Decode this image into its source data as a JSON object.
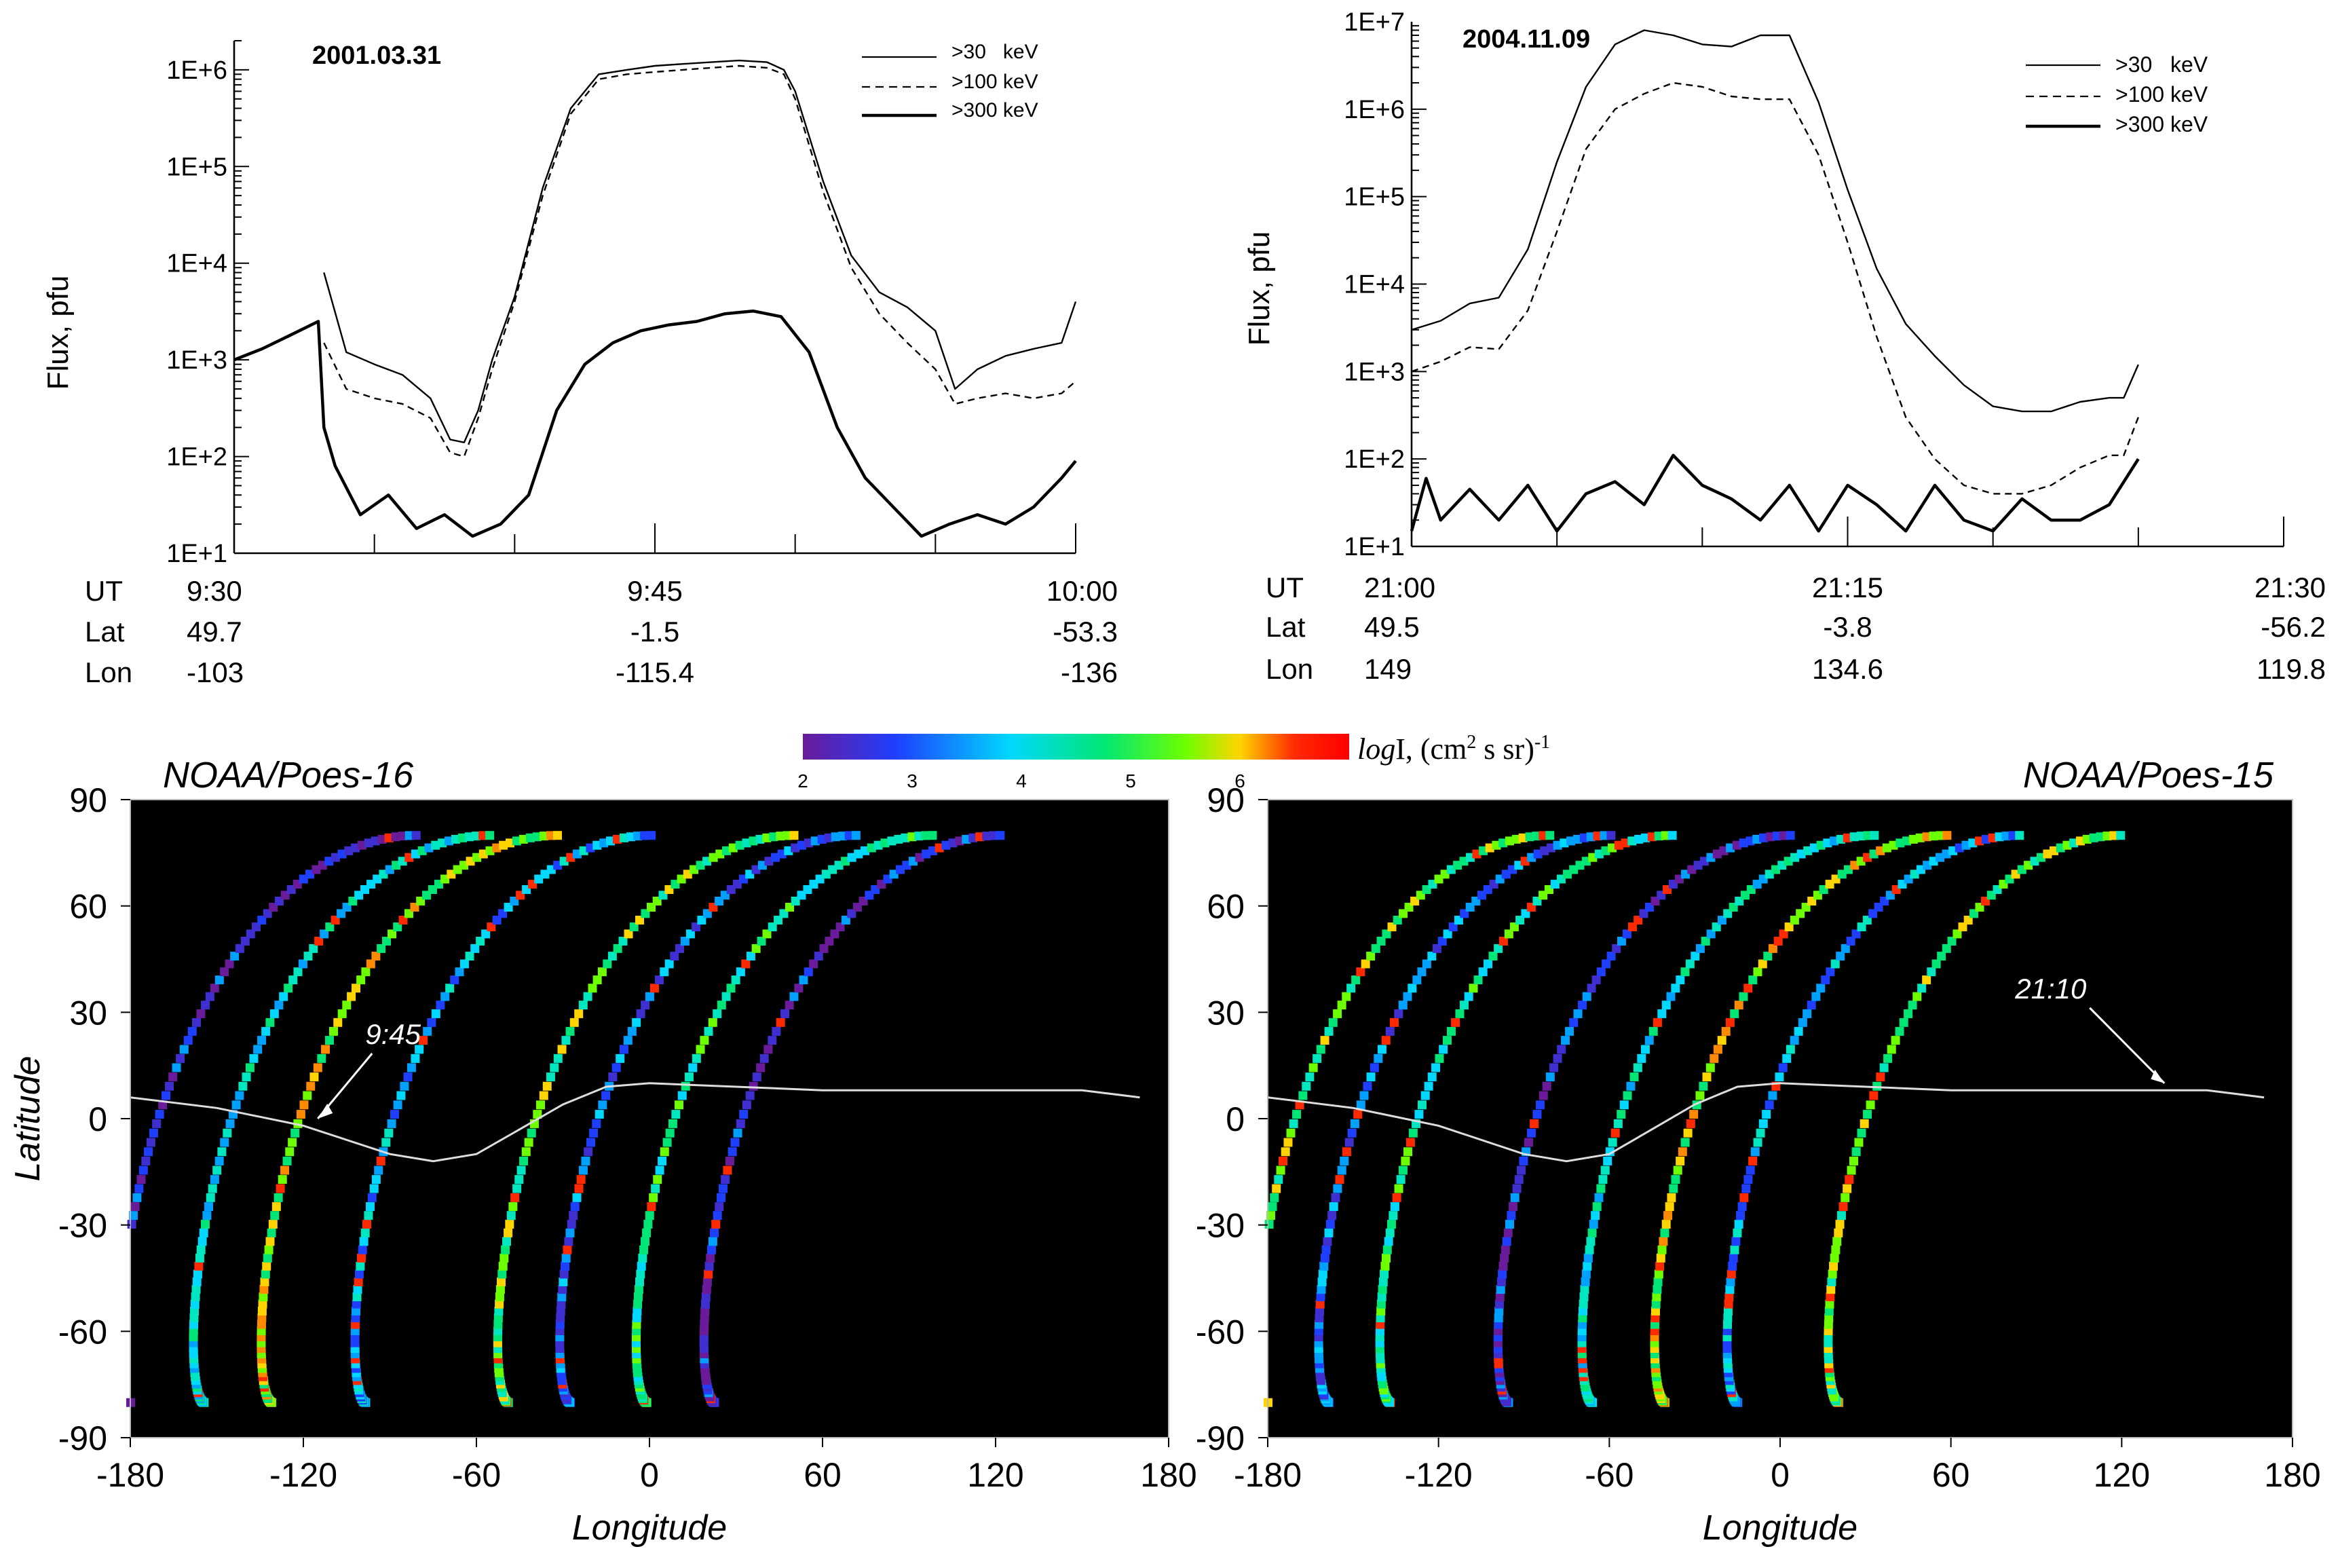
{
  "chart_data": [
    {
      "type": "line",
      "panel": "top-left",
      "title": "2001.03.31",
      "ylabel": "Flux, pfu",
      "yscale": "log",
      "ylim": [
        10,
        2000000
      ],
      "yticks": [
        {
          "v": 10,
          "label": "1E+1"
        },
        {
          "v": 100,
          "label": "1E+2"
        },
        {
          "v": 1000,
          "label": "1E+3"
        },
        {
          "v": 10000,
          "label": "1E+4"
        },
        {
          "v": 100000,
          "label": "1E+5"
        },
        {
          "v": 1000000,
          "label": "1E+6"
        }
      ],
      "xlim": [
        0,
        30
      ],
      "xunit": "minutes after 9:30 UT",
      "row_labels": [
        "UT",
        "Lat",
        "Lon"
      ],
      "xtick_columns": [
        {
          "x": 0,
          "ut": "9:30",
          "lat": "49.7",
          "lon": "-103"
        },
        {
          "x": 15,
          "ut": "9:45",
          "lat": "-1.5",
          "lon": "-115.4"
        },
        {
          "x": 30,
          "ut": "10:00",
          "lat": "-53.3",
          "lon": "-136"
        }
      ],
      "legend_position": "top-right",
      "series": [
        {
          "name": ">30   keV",
          "style": "thin",
          "x": [
            3.2,
            4.0,
            5.0,
            6.0,
            7.0,
            7.7,
            8.2,
            8.7,
            9.2,
            10.0,
            11.0,
            12.0,
            13.0,
            14.0,
            15.0,
            16.0,
            17.0,
            18.0,
            19.0,
            19.6,
            20.0,
            21.0,
            22.0,
            23.0,
            24.0,
            25.0,
            25.7,
            26.5,
            27.5,
            28.5,
            29.5,
            30.0
          ],
          "y": [
            8000,
            1200,
            900,
            700,
            400,
            150,
            140,
            300,
            1000,
            4500,
            60000,
            400000,
            900000,
            1000000,
            1100000,
            1150000,
            1200000,
            1250000,
            1200000,
            1000000,
            600000,
            70000,
            12000,
            5000,
            3500,
            2000,
            500,
            800,
            1100,
            1300,
            1500,
            4000
          ]
        },
        {
          "name": ">100 keV",
          "style": "dashed",
          "x": [
            3.2,
            4.0,
            5.0,
            6.0,
            7.0,
            7.7,
            8.2,
            8.7,
            9.2,
            10.0,
            11.0,
            12.0,
            13.0,
            14.0,
            15.0,
            16.0,
            17.0,
            18.0,
            19.0,
            19.6,
            20.0,
            21.0,
            22.0,
            23.0,
            24.0,
            25.0,
            25.7,
            26.5,
            27.5,
            28.5,
            29.5,
            30.0
          ],
          "y": [
            1500,
            500,
            400,
            350,
            250,
            110,
            100,
            250,
            800,
            4000,
            50000,
            350000,
            800000,
            900000,
            950000,
            1000000,
            1050000,
            1100000,
            1050000,
            900000,
            500000,
            55000,
            9000,
            3000,
            1500,
            800,
            350,
            400,
            450,
            400,
            450,
            600
          ]
        },
        {
          "name": ">300 keV",
          "style": "thick",
          "x": [
            0.0,
            1.0,
            2.0,
            3.0,
            3.2,
            3.6,
            4.5,
            5.5,
            6.5,
            7.5,
            8.5,
            9.5,
            10.5,
            11.5,
            12.5,
            13.5,
            14.5,
            15.5,
            16.5,
            17.5,
            18.5,
            19.5,
            20.5,
            21.5,
            22.5,
            23.5,
            24.5,
            25.5,
            26.5,
            27.5,
            28.5,
            29.5,
            30.0
          ],
          "y": [
            1000,
            1300,
            1800,
            2500,
            200,
            80,
            25,
            40,
            18,
            25,
            15,
            20,
            40,
            300,
            900,
            1500,
            2000,
            2300,
            2500,
            3000,
            3200,
            2800,
            1200,
            200,
            60,
            30,
            15,
            20,
            25,
            20,
            30,
            60,
            90
          ]
        }
      ]
    },
    {
      "type": "line",
      "panel": "top-right",
      "title": "2004.11.09",
      "ylabel": "Flux, pfu",
      "yscale": "log",
      "ylim": [
        10,
        10000000
      ],
      "yticks": [
        {
          "v": 10,
          "label": "1E+1"
        },
        {
          "v": 100,
          "label": "1E+2"
        },
        {
          "v": 1000,
          "label": "1E+3"
        },
        {
          "v": 10000,
          "label": "1E+4"
        },
        {
          "v": 100000,
          "label": "1E+5"
        },
        {
          "v": 1000000,
          "label": "1E+6"
        },
        {
          "v": 10000000,
          "label": "1E+7"
        }
      ],
      "xlim": [
        0,
        30
      ],
      "xunit": "minutes after 21:00 UT",
      "row_labels": [
        "UT",
        "Lat",
        "Lon"
      ],
      "xtick_columns": [
        {
          "x": 0,
          "ut": "21:00",
          "lat": "49.5",
          "lon": "149"
        },
        {
          "x": 15,
          "ut": "21:15",
          "lat": "-3.8",
          "lon": "134.6"
        },
        {
          "x": 30,
          "ut": "21:30",
          "lat": "-56.2",
          "lon": "119.8"
        }
      ],
      "legend_position": "top-right",
      "series": [
        {
          "name": ">30   keV",
          "style": "thin",
          "x": [
            0.0,
            1.0,
            2.0,
            3.0,
            4.0,
            5.0,
            6.0,
            7.0,
            8.0,
            9.0,
            10.0,
            11.0,
            12.0,
            13.0,
            14.0,
            15.0,
            16.0,
            17.0,
            18.0,
            19.0,
            20.0,
            21.0,
            22.0,
            23.0,
            24.0,
            24.5,
            25.0
          ],
          "y": [
            3000,
            3800,
            6000,
            7000,
            25000,
            250000,
            1800000,
            5500000,
            8000000,
            7000000,
            5500000,
            5200000,
            7000000,
            7000000,
            1200000,
            120000,
            15000,
            3500,
            1500,
            700,
            400,
            350,
            350,
            450,
            500,
            500,
            1200
          ]
        },
        {
          "name": ">100 keV",
          "style": "dashed",
          "x": [
            0.0,
            1.0,
            2.0,
            3.0,
            4.0,
            5.0,
            6.0,
            7.0,
            8.0,
            9.0,
            10.0,
            11.0,
            12.0,
            13.0,
            14.0,
            15.0,
            16.0,
            17.0,
            18.0,
            19.0,
            20.0,
            21.0,
            22.0,
            23.0,
            24.0,
            24.5,
            25.0
          ],
          "y": [
            1000,
            1300,
            1900,
            1800,
            5000,
            40000,
            350000,
            1000000,
            1500000,
            2000000,
            1800000,
            1400000,
            1300000,
            1300000,
            300000,
            30000,
            2500,
            300,
            100,
            50,
            40,
            40,
            50,
            80,
            110,
            110,
            300
          ]
        },
        {
          "name": ">300 keV",
          "style": "thick",
          "x": [
            0.0,
            0.5,
            1.0,
            2.0,
            3.0,
            4.0,
            5.0,
            6.0,
            7.0,
            8.0,
            9.0,
            10.0,
            11.0,
            12.0,
            13.0,
            14.0,
            15.0,
            16.0,
            17.0,
            18.0,
            19.0,
            20.0,
            21.0,
            22.0,
            23.0,
            24.0,
            25.0
          ],
          "y": [
            15,
            60,
            20,
            45,
            20,
            50,
            15,
            40,
            55,
            30,
            110,
            50,
            35,
            20,
            50,
            15,
            50,
            30,
            15,
            50,
            20,
            15,
            35,
            20,
            20,
            30,
            100
          ]
        }
      ]
    },
    {
      "type": "heatmap",
      "panel": "bottom-left",
      "title": "NOAA/Poes-16",
      "xlabel": "Longitude",
      "ylabel": "Latitude",
      "xlim": [
        -180,
        180
      ],
      "ylim": [
        -90,
        90
      ],
      "xticks": [
        -180,
        -120,
        -60,
        0,
        60,
        120,
        180
      ],
      "yticks": [
        90,
        60,
        30,
        0,
        -30,
        -60,
        -90
      ],
      "background": "#000000",
      "annotation": {
        "text": "9:45",
        "lon": -115,
        "lat": 0
      },
      "orbit_tracks_start_lon": [
        -180,
        -156,
        -134,
        -103,
        -55,
        -35,
        -10,
        12
      ],
      "orbit_tracks_note": "each track rises from -80 to 80 latitude; colour gives logI",
      "terminator": {
        "lon": [
          -180,
          -150,
          -120,
          -90,
          -75,
          -60,
          -45,
          -30,
          -15,
          0,
          30,
          60,
          90,
          120,
          150,
          170
        ],
        "lat": [
          6,
          3,
          -2,
          -10,
          -12,
          -10,
          -3,
          4,
          9,
          10,
          9,
          8,
          8,
          8,
          8,
          6
        ]
      }
    },
    {
      "type": "heatmap",
      "panel": "bottom-right",
      "title": "NOAA/Poes-15",
      "xlabel": "Longitude",
      "ylabel": "Latitude",
      "xlim": [
        -180,
        180
      ],
      "ylim": [
        -90,
        90
      ],
      "xticks": [
        -180,
        -120,
        -60,
        0,
        60,
        120,
        180
      ],
      "yticks": [
        90,
        60,
        30,
        0,
        -30,
        -60,
        -90
      ],
      "background": "#000000",
      "annotation": {
        "text": "21:10",
        "lon": 135,
        "lat": 10
      },
      "orbit_tracks_start_lon": [
        -180,
        -160,
        -140,
        -100,
        -72,
        -48,
        -24,
        10
      ],
      "orbit_tracks_note": "each track rises from -80 to 80 latitude; colour gives logI",
      "terminator": {
        "lon": [
          -180,
          -150,
          -120,
          -90,
          -75,
          -60,
          -45,
          -30,
          -15,
          0,
          30,
          60,
          90,
          120,
          150,
          170
        ],
        "lat": [
          6,
          3,
          -2,
          -10,
          -12,
          -10,
          -3,
          4,
          9,
          10,
          9,
          8,
          8,
          8,
          8,
          6
        ]
      }
    }
  ],
  "colorbar": {
    "range": [
      2,
      7
    ],
    "ticks": [
      "2",
      "3",
      "4",
      "5",
      "6"
    ],
    "label_italic": "log",
    "label_rest": "I, (cm",
    "label_sup1": "2",
    "label_mid": " s sr)",
    "label_sup2": "-1",
    "colors": [
      "#6a1b9a",
      "#1f3fff",
      "#00d8ff",
      "#00e676",
      "#6dff00",
      "#ffd400",
      "#ff2a00"
    ]
  }
}
